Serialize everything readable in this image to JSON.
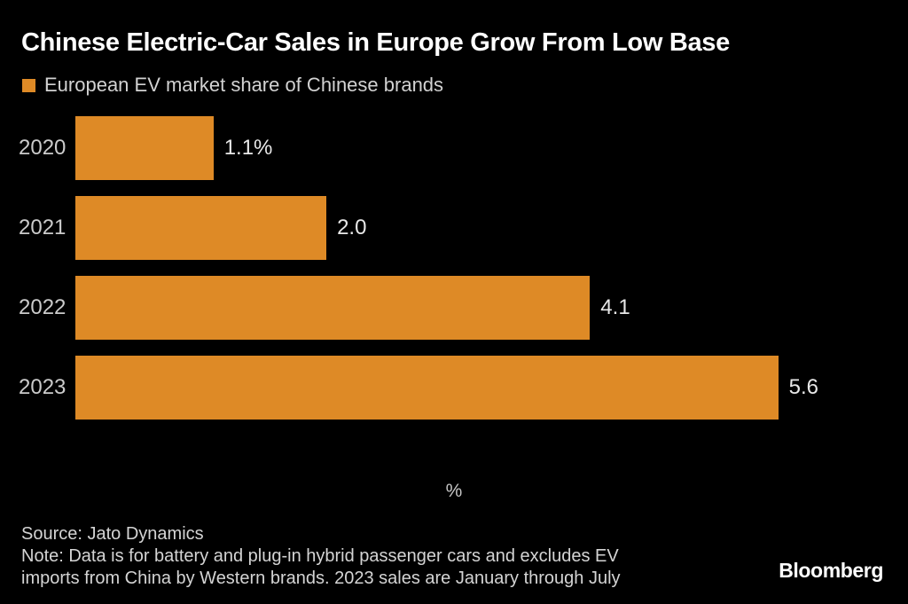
{
  "colors": {
    "background": "#000000",
    "bar": "#DE8A26",
    "title_text": "#FFFFFF",
    "body_text": "#D4D4D4"
  },
  "chart_data": {
    "type": "bar",
    "orientation": "horizontal",
    "title": "Chinese Electric-Car Sales in Europe Grow From Low Base",
    "legend": "European EV market share of Chinese brands",
    "legend_position": "top-left",
    "categories": [
      "2020",
      "2021",
      "2022",
      "2023"
    ],
    "values": [
      1.1,
      2.0,
      4.1,
      5.6
    ],
    "value_labels": [
      "1.1%",
      "2.0",
      "4.1",
      "5.6"
    ],
    "xlabel": "%",
    "xlim": [
      0,
      6.5
    ],
    "grid": false,
    "bar_color": "#DE8A26"
  },
  "footer": {
    "source": "Source: Jato Dynamics",
    "note_lines": [
      "Note: Data is for battery and plug-in hybrid passenger cars and excludes EV",
      "imports from China by Western brands. 2023 sales are January through July"
    ]
  },
  "branding": {
    "logo_text": "Bloomberg"
  }
}
